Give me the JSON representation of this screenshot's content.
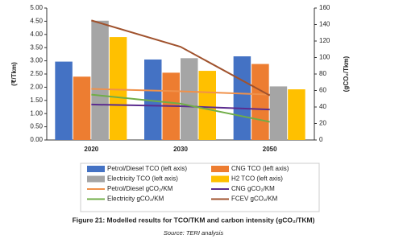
{
  "chart_data": {
    "type": "bar",
    "caption": "Figure 21: Modelled results for TCO/TKM and carbon intensity (gCO₂/TKM)",
    "source": "Source: TERI analysis",
    "ylabel": "(₹/Tkm)",
    "y2label": "(gCO₂/Tkm)",
    "categories": [
      "2020",
      "2030",
      "2050"
    ],
    "ylim": [
      0,
      5
    ],
    "yticks": [
      {
        "value": 0,
        "label": "0.00"
      },
      {
        "value": 0.5,
        "label": "0.50"
      },
      {
        "value": 1,
        "label": "1.00"
      },
      {
        "value": 1.5,
        "label": "1.50"
      },
      {
        "value": 2,
        "label": "2.00"
      },
      {
        "value": 2.5,
        "label": "2.50"
      },
      {
        "value": 3,
        "label": "3.00"
      },
      {
        "value": 3.5,
        "label": "3.50"
      },
      {
        "value": 4,
        "label": "4.00"
      },
      {
        "value": 4.5,
        "label": "4.50"
      },
      {
        "value": 5,
        "label": "5.00"
      }
    ],
    "y2lim": [
      0,
      160
    ],
    "y2ticks": [
      0,
      20,
      40,
      60,
      80,
      100,
      120,
      140,
      160
    ],
    "series": [
      {
        "name": "Petrol/Diesel TCO (left axis)",
        "type": "bar",
        "color": "#4472c4",
        "values": [
          2.97,
          3.05,
          3.17
        ]
      },
      {
        "name": "CNG TCO (left axis)",
        "type": "bar",
        "color": "#ed7d31",
        "values": [
          2.4,
          2.55,
          2.88
        ]
      },
      {
        "name": "Electricity TCO (left axis)",
        "type": "bar",
        "color": "#a5a5a5",
        "values": [
          4.52,
          3.1,
          2.03
        ]
      },
      {
        "name": "H2 TCO (left axis)",
        "type": "bar",
        "color": "#ffc000",
        "values": [
          3.9,
          2.62,
          1.92
        ]
      },
      {
        "name": "Petrol/Diesel gCO₂/KM",
        "type": "line",
        "axis": "y2",
        "color": "#f0914a",
        "values": [
          62,
          59,
          55
        ]
      },
      {
        "name": "CNG gCO₂/KM",
        "type": "line",
        "axis": "y2",
        "color": "#5b2c8f",
        "values": [
          43,
          41,
          37
        ]
      },
      {
        "name": "Electricity gCO₂/KM",
        "type": "line",
        "axis": "y2",
        "color": "#70ad47",
        "values": [
          55,
          44,
          22
        ]
      },
      {
        "name": "FCEV gCO₂/KM",
        "type": "line",
        "axis": "y2",
        "color": "#a0522d",
        "values": [
          145,
          113,
          54
        ]
      }
    ]
  }
}
